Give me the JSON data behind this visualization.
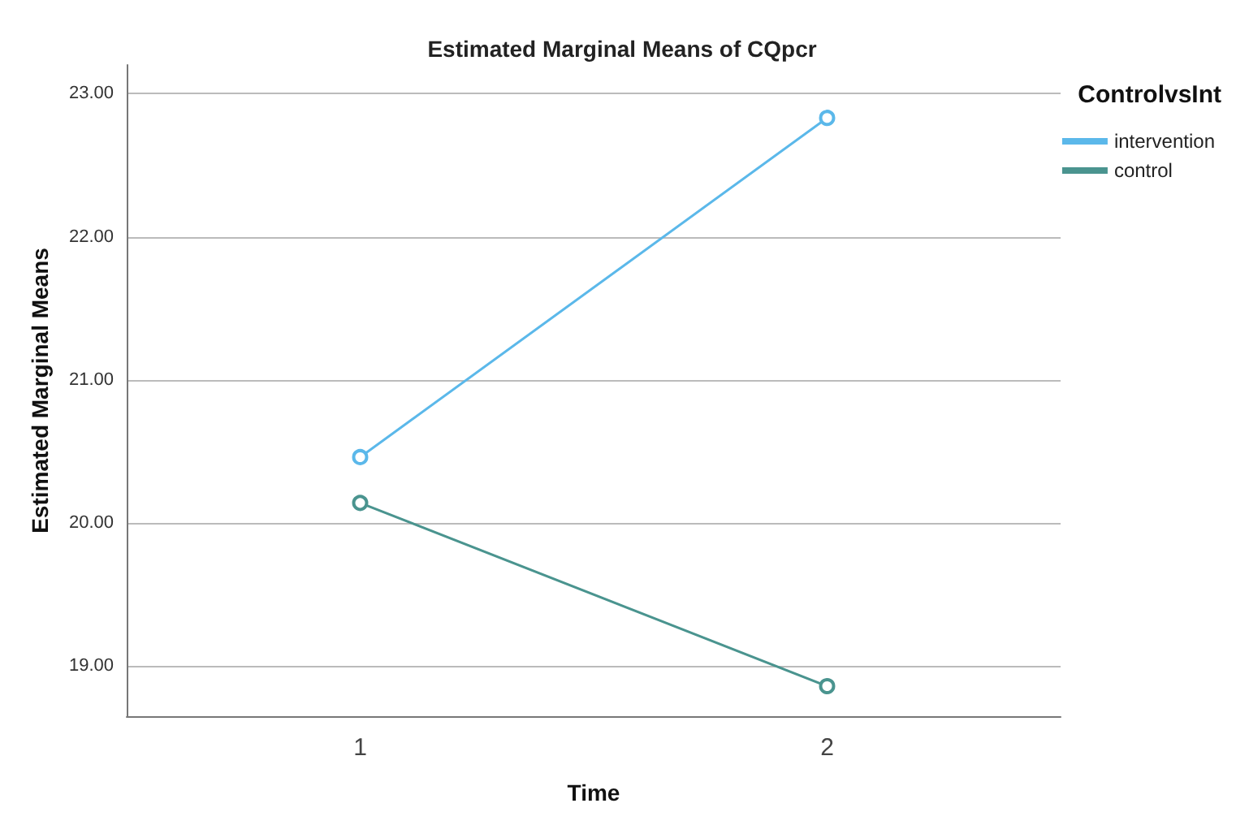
{
  "chart_data": {
    "type": "line",
    "title": "Estimated Marginal Means of CQpcr",
    "xlabel": "Time",
    "ylabel": "Estimated Marginal Means",
    "legend_title": "ControlvsInt",
    "categories": [
      "1",
      "2"
    ],
    "series": [
      {
        "name": "intervention",
        "color": "#5bb8ea",
        "values": [
          20.46,
          22.83
        ]
      },
      {
        "name": "control",
        "color": "#4a948f",
        "values": [
          20.14,
          18.86
        ]
      }
    ],
    "ylim": [
      18.65,
      23.2
    ],
    "yticks": [
      {
        "value": 19,
        "label": "19.00"
      },
      {
        "value": 20,
        "label": "20.00"
      },
      {
        "value": 21,
        "label": "21.00"
      },
      {
        "value": 22,
        "label": "22.00"
      },
      {
        "value": 23,
        "label": "23.00"
      }
    ],
    "grid": "y",
    "legend": "top right",
    "marker": "circle",
    "line_style": "solid"
  }
}
